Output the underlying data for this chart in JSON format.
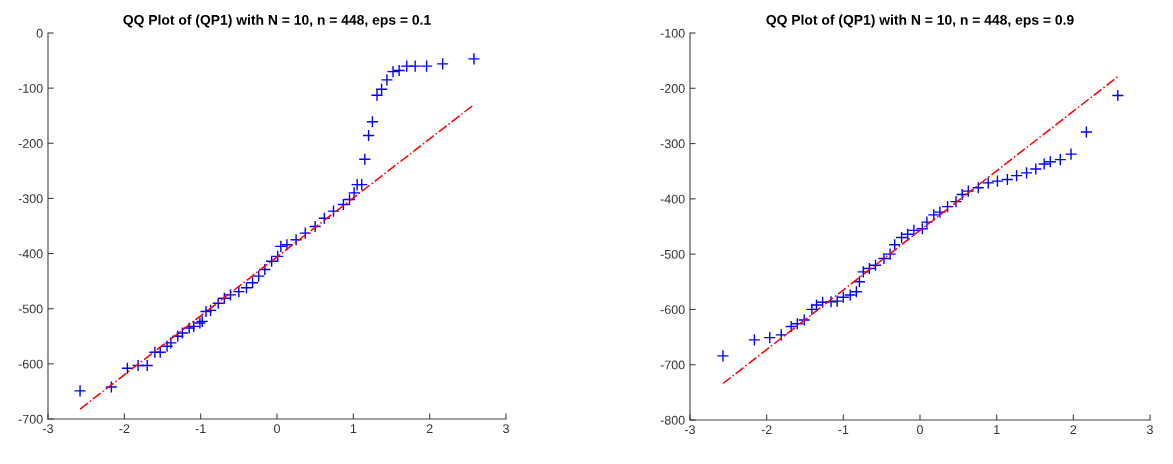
{
  "chart_data": [
    {
      "type": "scatter",
      "title": "QQ Plot of (QP1) with N = 10, n = 448, eps = 0.1",
      "xlim": [
        -3,
        3
      ],
      "xticks": [
        -3,
        -2,
        -1,
        0,
        1,
        2,
        3
      ],
      "ylim": [
        -700,
        0
      ],
      "yticks": [
        -700,
        -600,
        -500,
        -400,
        -300,
        -200,
        -100,
        0
      ],
      "grid": false,
      "series": [
        {
          "color": "#0000ff",
          "marker": "cross",
          "x": [
            -2.58,
            -2.17,
            -1.96,
            -1.82,
            -1.7,
            -1.6,
            -1.53,
            -1.44,
            -1.39,
            -1.3,
            -1.24,
            -1.15,
            -1.09,
            -1.01,
            -0.98,
            -0.93,
            -0.87,
            -0.77,
            -0.69,
            -0.61,
            -0.5,
            -0.4,
            -0.32,
            -0.24,
            -0.16,
            -0.07,
            0.01,
            0.05,
            0.13,
            0.25,
            0.37,
            0.5,
            0.62,
            0.74,
            0.87,
            0.95,
            1.01,
            1.05,
            1.11,
            1.15,
            1.2,
            1.25,
            1.31,
            1.37,
            1.44,
            1.52,
            1.6,
            1.7,
            1.81,
            1.96,
            2.17,
            2.58
          ],
          "values": [
            -649,
            -642,
            -608,
            -603,
            -603,
            -579,
            -579,
            -568,
            -562,
            -550,
            -544,
            -535,
            -532,
            -526,
            -523,
            -505,
            -503,
            -490,
            -481,
            -475,
            -469,
            -462,
            -453,
            -441,
            -429,
            -414,
            -405,
            -387,
            -384,
            -375,
            -363,
            -351,
            -336,
            -323,
            -311,
            -302,
            -290,
            -275,
            -275,
            -229,
            -186,
            -161,
            -113,
            -102,
            -85,
            -70,
            -68,
            -60,
            -60,
            -60,
            -56,
            -47
          ]
        },
        {
          "type": "line",
          "color": "#ff0000",
          "line_style": "dashed",
          "x": [
            -2.58,
            2.58
          ],
          "values": [
            -682,
            -130
          ]
        }
      ]
    },
    {
      "type": "scatter",
      "title": "QQ Plot of (QP1) with N = 10, n = 448, eps = 0.9",
      "xlim": [
        -3,
        3
      ],
      "xticks": [
        -3,
        -2,
        -1,
        0,
        1,
        2,
        3
      ],
      "ylim": [
        -800,
        -100
      ],
      "yticks": [
        -800,
        -700,
        -600,
        -500,
        -400,
        -300,
        -200,
        -100
      ],
      "grid": false,
      "series": [
        {
          "color": "#0000ff",
          "marker": "cross",
          "x": [
            -2.57,
            -2.16,
            -1.96,
            -1.81,
            -1.68,
            -1.6,
            -1.51,
            -1.41,
            -1.35,
            -1.27,
            -1.16,
            -1.08,
            -1.0,
            -0.91,
            -0.83,
            -0.79,
            -0.74,
            -0.66,
            -0.58,
            -0.47,
            -0.39,
            -0.33,
            -0.24,
            -0.16,
            -0.08,
            0.03,
            0.09,
            0.18,
            0.26,
            0.36,
            0.47,
            0.55,
            0.63,
            0.76,
            0.89,
            1.01,
            1.14,
            1.26,
            1.39,
            1.51,
            1.62,
            1.7,
            1.83,
            1.97,
            2.17,
            2.58
          ],
          "values": [
            -684,
            -655,
            -651,
            -646,
            -631,
            -626,
            -619,
            -600,
            -592,
            -587,
            -586,
            -585,
            -578,
            -574,
            -568,
            -550,
            -532,
            -526,
            -520,
            -508,
            -500,
            -483,
            -470,
            -464,
            -457,
            -454,
            -442,
            -429,
            -424,
            -414,
            -405,
            -392,
            -386,
            -380,
            -371,
            -368,
            -365,
            -358,
            -353,
            -346,
            -337,
            -333,
            -329,
            -319,
            -279,
            -213
          ]
        },
        {
          "type": "line",
          "color": "#ff0000",
          "line_style": "dashed",
          "x": [
            -2.57,
            2.58
          ],
          "values": [
            -734,
            -179
          ]
        }
      ]
    }
  ]
}
